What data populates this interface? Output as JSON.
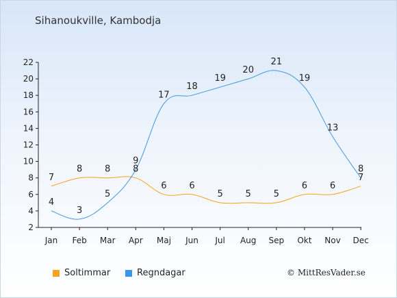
{
  "title": "Sihanoukville, Kambodja",
  "copyright": "© MittResVader.se",
  "chart_data": {
    "type": "line",
    "categories": [
      "Jan",
      "Feb",
      "Mar",
      "Apr",
      "Maj",
      "Jun",
      "Jul",
      "Aug",
      "Sep",
      "Okt",
      "Nov",
      "Dec"
    ],
    "series": [
      {
        "name": "Soltimmar",
        "color": "#f5a21f",
        "values": [
          7,
          8,
          8,
          8,
          6,
          6,
          5,
          5,
          5,
          6,
          6,
          7
        ]
      },
      {
        "name": "Regndagar",
        "color": "#3c97e8",
        "values": [
          4,
          3,
          5,
          9,
          17,
          18,
          19,
          20,
          21,
          19,
          13,
          8
        ]
      }
    ],
    "ylim": [
      2,
      22
    ],
    "yticks": [
      2,
      4,
      6,
      8,
      10,
      12,
      14,
      16,
      18,
      20,
      22
    ],
    "grid": false,
    "legend": "bottom-left"
  }
}
